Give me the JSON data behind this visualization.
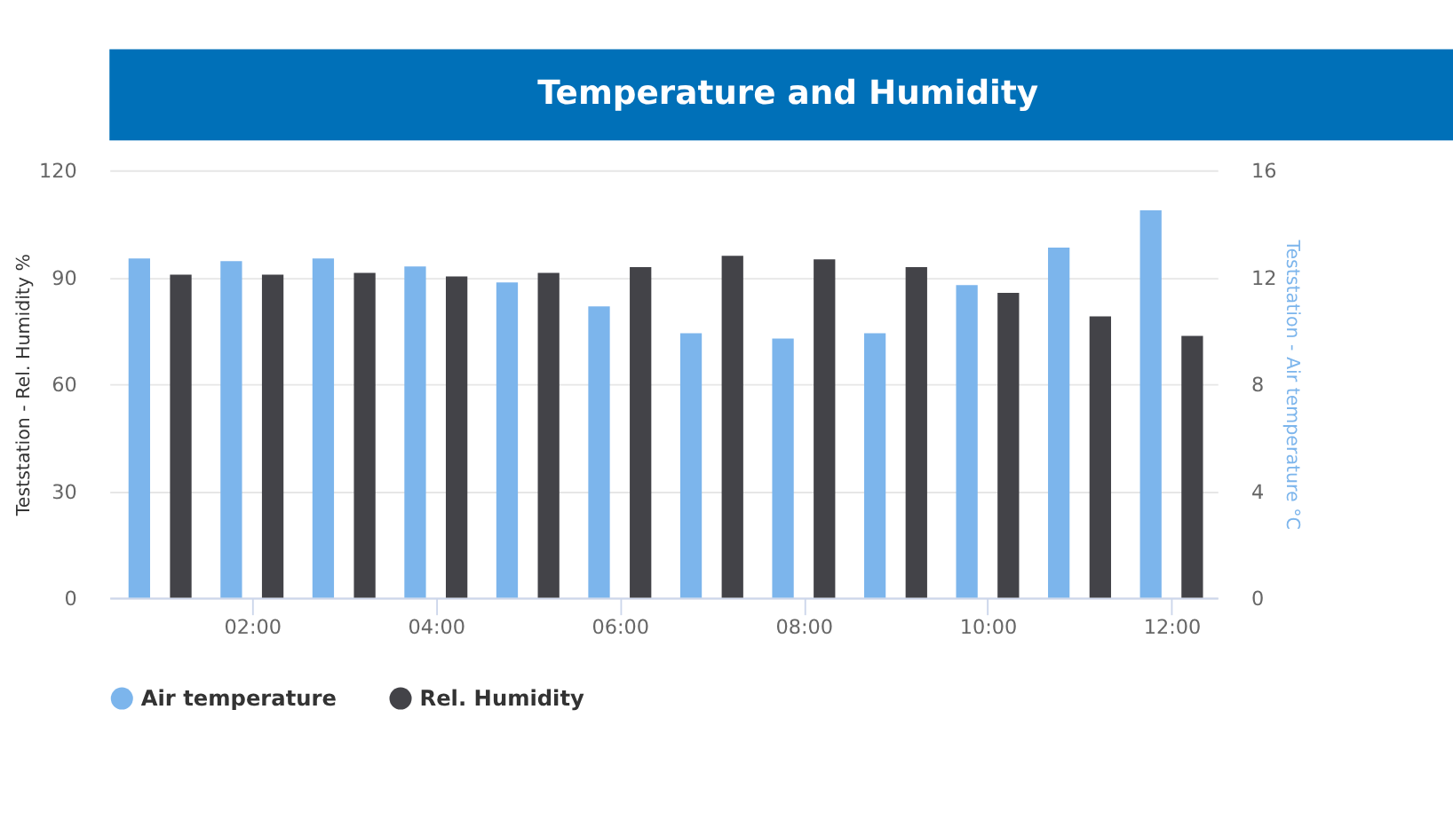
{
  "chart_data": {
    "type": "bar",
    "title": "Temperature and Humidity",
    "ylabel": "Teststation - Rel. Humidity %",
    "y2label": "Teststation - Air temperature °C",
    "x": [
      1,
      2,
      3,
      4,
      5,
      6,
      7,
      8,
      9,
      10,
      11,
      12
    ],
    "xlim": [
      0.45,
      12.5
    ],
    "xticks": [
      {
        "value": 2,
        "label": "02:00"
      },
      {
        "value": 4,
        "label": "04:00"
      },
      {
        "value": 6,
        "label": "06:00"
      },
      {
        "value": 8,
        "label": "08:00"
      },
      {
        "value": 10,
        "label": "10:00"
      },
      {
        "value": 12,
        "label": "12:00"
      }
    ],
    "ylim": [
      0,
      120
    ],
    "yticks": [
      0,
      30,
      60,
      90,
      120
    ],
    "y2lim": [
      0,
      16
    ],
    "y2ticks": [
      0,
      4,
      8,
      12,
      16
    ],
    "series": [
      {
        "name": "Air temperature",
        "color": "#7cb5ec",
        "axis": "y2",
        "values": [
          12.7,
          12.6,
          12.7,
          12.4,
          11.8,
          10.9,
          9.9,
          9.7,
          9.9,
          11.7,
          13.1,
          14.5
        ]
      },
      {
        "name": "Rel. Humidity",
        "color": "#434348",
        "values": [
          90.7,
          90.7,
          91.2,
          90.2,
          91.2,
          92.8,
          96,
          95,
          92.8,
          85.6,
          79,
          73.5
        ]
      }
    ],
    "legend": "bottom",
    "grid": "y"
  }
}
